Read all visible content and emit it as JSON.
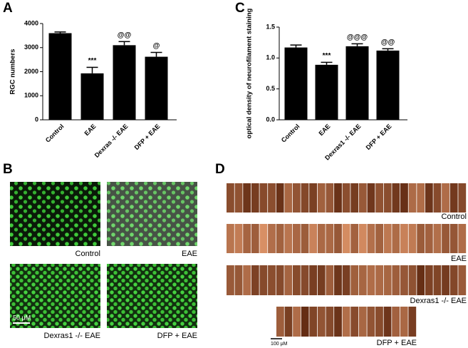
{
  "chart_data": [
    {
      "type": "bar",
      "panel": "A",
      "ylabel": "RGC numbers",
      "categories": [
        "Control",
        "EAE",
        "Dexras -/- EAE",
        "DFP + EAE"
      ],
      "values": [
        3600,
        1930,
        3100,
        2620
      ],
      "errors": [
        50,
        250,
        150,
        180
      ],
      "annotations": [
        null,
        "***",
        "@@",
        "@"
      ],
      "color": "#000000",
      "ylim": [
        0,
        4000
      ],
      "yticks": [
        0,
        1000,
        2000,
        3000,
        4000
      ]
    },
    {
      "type": "bar",
      "panel": "C",
      "ylabel": "optical density of neurofilament staining",
      "categories": [
        "Control",
        "EAE",
        "Dexras1 -/- EAE",
        "DFP + EAE"
      ],
      "values": [
        1.17,
        0.89,
        1.19,
        1.12
      ],
      "errors": [
        0.04,
        0.04,
        0.04,
        0.03
      ],
      "annotations": [
        null,
        "***",
        "@@@",
        "@@"
      ],
      "color": "#000000",
      "ylim": [
        0,
        1.5
      ],
      "yticks": [
        {
          "value": 0,
          "label": "0.0"
        },
        0.5,
        {
          "value": 1,
          "label": "1.0"
        },
        1.5
      ]
    }
  ],
  "panel_b": {
    "label": "B",
    "captions": [
      "Control",
      "EAE",
      "Dexras1 -/- EAE",
      "DFP + EAE"
    ],
    "scale": "50 μM"
  },
  "panel_d": {
    "label": "D",
    "captions": [
      "Control",
      "EAE",
      "Dexras1 -/- EAE",
      "DFP + EAE"
    ],
    "scale": "100 μM"
  }
}
